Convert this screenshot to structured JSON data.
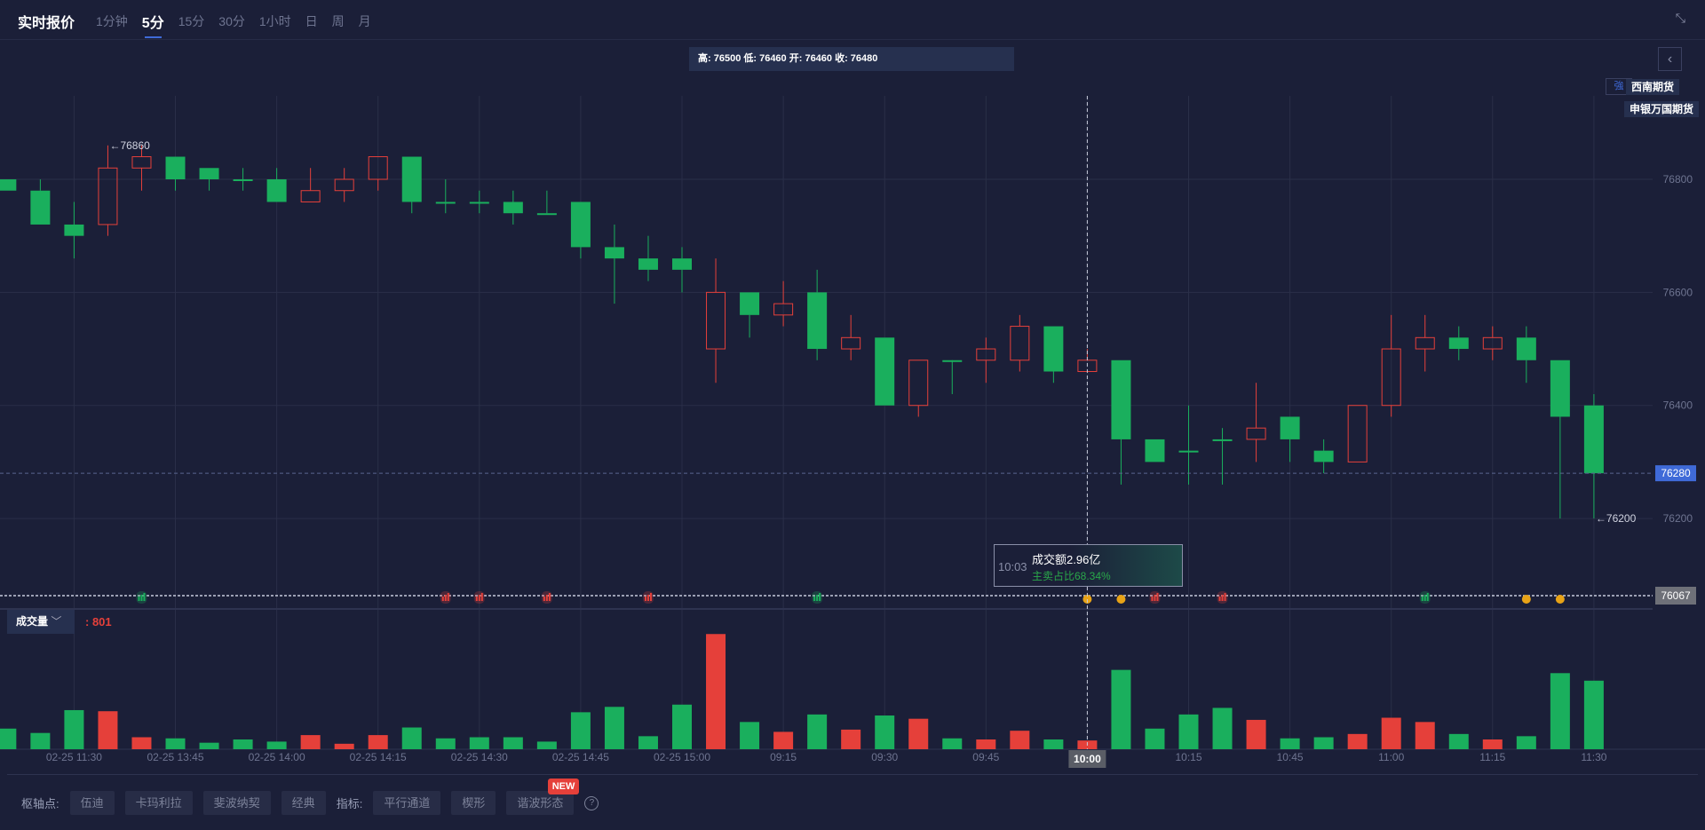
{
  "header": {
    "title": "实时报价",
    "periods": [
      "1分钟",
      "5分",
      "15分",
      "30分",
      "1小时",
      "日",
      "周",
      "月"
    ],
    "active_period": "5分",
    "shrink_icon": "shrink-arrows-icon"
  },
  "ohlc_info": "高: 76500 低: 76460 开: 76460 收: 76480",
  "brokers": [
    "西南期货",
    "申银万国期货"
  ],
  "strong_tag": "強",
  "tooltip": {
    "time": "10:03",
    "amount": "成交额2.96亿",
    "ratio": "主卖占比68.34%"
  },
  "volume_panel": {
    "label": "成交量",
    "value": ": 801"
  },
  "toolbar": {
    "pivot_label": "枢轴点:",
    "pivot_buttons": [
      "伍迪",
      "卡玛利拉",
      "斐波纳契",
      "经典"
    ],
    "indicator_label": "指标:",
    "indicator_buttons": [
      "平行通道",
      "楔形",
      "谐波形态"
    ],
    "new_badge": "NEW",
    "help": "?"
  },
  "colors": {
    "up": "#e5403a",
    "down": "#1aaf5d",
    "background": "#1b1f38",
    "grid": "#2a2f48",
    "accent": "#3f6ad8"
  },
  "chart_data": {
    "type": "candlestick",
    "y_ticks": [
      76800,
      76600,
      76400,
      76200
    ],
    "ylim": [
      76067,
      76960
    ],
    "candles": [
      [
        76800,
        76800,
        76780,
        76780
      ],
      [
        76780,
        76800,
        76720,
        76720
      ],
      [
        76720,
        76760,
        76660,
        76700
      ],
      [
        76720,
        76860,
        76700,
        76820
      ],
      [
        76820,
        76860,
        76780,
        76840
      ],
      [
        76840,
        76840,
        76780,
        76800
      ],
      [
        76820,
        76820,
        76780,
        76800
      ],
      [
        76800,
        76820,
        76780,
        76800
      ],
      [
        76800,
        76820,
        76760,
        76760
      ],
      [
        76760,
        76820,
        76760,
        76780
      ],
      [
        76780,
        76820,
        76760,
        76800
      ],
      [
        76800,
        76840,
        76780,
        76840
      ],
      [
        76840,
        76840,
        76740,
        76760
      ],
      [
        76760,
        76800,
        76740,
        76760
      ],
      [
        76760,
        76780,
        76740,
        76760
      ],
      [
        76760,
        76780,
        76720,
        76740
      ],
      [
        76740,
        76780,
        76740,
        76740
      ],
      [
        76760,
        76760,
        76660,
        76680
      ],
      [
        76680,
        76720,
        76580,
        76660
      ],
      [
        76660,
        76700,
        76620,
        76640
      ],
      [
        76660,
        76680,
        76600,
        76640
      ],
      [
        76500,
        76660,
        76440,
        76600
      ],
      [
        76600,
        76600,
        76520,
        76560
      ],
      [
        76560,
        76620,
        76540,
        76580
      ],
      [
        76600,
        76640,
        76480,
        76500
      ],
      [
        76500,
        76560,
        76480,
        76520
      ],
      [
        76520,
        76520,
        76400,
        76400
      ],
      [
        76400,
        76480,
        76380,
        76480
      ],
      [
        76480,
        76480,
        76420,
        76480
      ],
      [
        76480,
        76520,
        76440,
        76500
      ],
      [
        76480,
        76560,
        76460,
        76540
      ],
      [
        76540,
        76540,
        76440,
        76460
      ],
      [
        76460,
        76500,
        76460,
        76480
      ],
      [
        76480,
        76480,
        76260,
        76340
      ],
      [
        76340,
        76340,
        76300,
        76300
      ],
      [
        76320,
        76400,
        76260,
        76320
      ],
      [
        76340,
        76360,
        76260,
        76340
      ],
      [
        76340,
        76440,
        76300,
        76360
      ],
      [
        76380,
        76380,
        76300,
        76340
      ],
      [
        76320,
        76340,
        76280,
        76300
      ],
      [
        76300,
        76400,
        76300,
        76400
      ],
      [
        76400,
        76560,
        76380,
        76500
      ],
      [
        76500,
        76560,
        76460,
        76520
      ],
      [
        76520,
        76540,
        76480,
        76500
      ],
      [
        76500,
        76540,
        76480,
        76520
      ],
      [
        76520,
        76540,
        76440,
        76480
      ],
      [
        76480,
        76480,
        76200,
        76380
      ],
      [
        76400,
        76420,
        76200,
        76280
      ]
    ],
    "volumes": [
      241,
      190,
      457,
      444,
      140,
      127,
      76,
      114,
      89,
      165,
      64,
      165,
      254,
      127,
      140,
      140,
      89,
      432,
      495,
      152,
      521,
      1346,
      318,
      203,
      406,
      229,
      394,
      356,
      127,
      114,
      216,
      114,
      102,
      927,
      241,
      406,
      483,
      343,
      127,
      140,
      178,
      368,
      318,
      178,
      114,
      152,
      889,
      801
    ],
    "x_labels": [
      {
        "i": 2,
        "t": "02-25 11:30"
      },
      {
        "i": 5,
        "t": "02-25 13:45"
      },
      {
        "i": 8,
        "t": "02-25 14:00"
      },
      {
        "i": 11,
        "t": "02-25 14:15"
      },
      {
        "i": 14,
        "t": "02-25 14:30"
      },
      {
        "i": 17,
        "t": "02-25 14:45"
      },
      {
        "i": 20,
        "t": "02-25 15:00"
      },
      {
        "i": 23,
        "t": "09:15"
      },
      {
        "i": 26,
        "t": "09:30"
      },
      {
        "i": 29,
        "t": "09:45"
      },
      {
        "i": 32,
        "t": "10:00"
      },
      {
        "i": 35,
        "t": "10:15"
      },
      {
        "i": 38,
        "t": "10:45"
      },
      {
        "i": 41,
        "t": "11:00"
      },
      {
        "i": 44,
        "t": "11:15"
      },
      {
        "i": 47,
        "t": "11:30"
      }
    ],
    "crosshair_index": 32,
    "crosshair_label": "10:00",
    "high_mark": {
      "i": 3,
      "label": "←76860",
      "price": 76860
    },
    "low_mark": {
      "i": 47,
      "label": "←76200",
      "price": 76200
    },
    "last_price": 76280,
    "reference_line": 76067,
    "signals": [
      {
        "i": 4,
        "type": "green-bars"
      },
      {
        "i": 13,
        "type": "red-bars"
      },
      {
        "i": 14,
        "type": "red-bars"
      },
      {
        "i": 16,
        "type": "red-bars"
      },
      {
        "i": 19,
        "type": "red-bars"
      },
      {
        "i": 24,
        "type": "green-arrow"
      },
      {
        "i": 32,
        "type": "orange-coin"
      },
      {
        "i": 33,
        "type": "orange-coin"
      },
      {
        "i": 34,
        "type": "red-bars"
      },
      {
        "i": 36,
        "type": "red-bars"
      },
      {
        "i": 42,
        "type": "green-bars"
      },
      {
        "i": 45,
        "type": "orange-coin"
      },
      {
        "i": 46,
        "type": "orange-coin"
      }
    ]
  }
}
